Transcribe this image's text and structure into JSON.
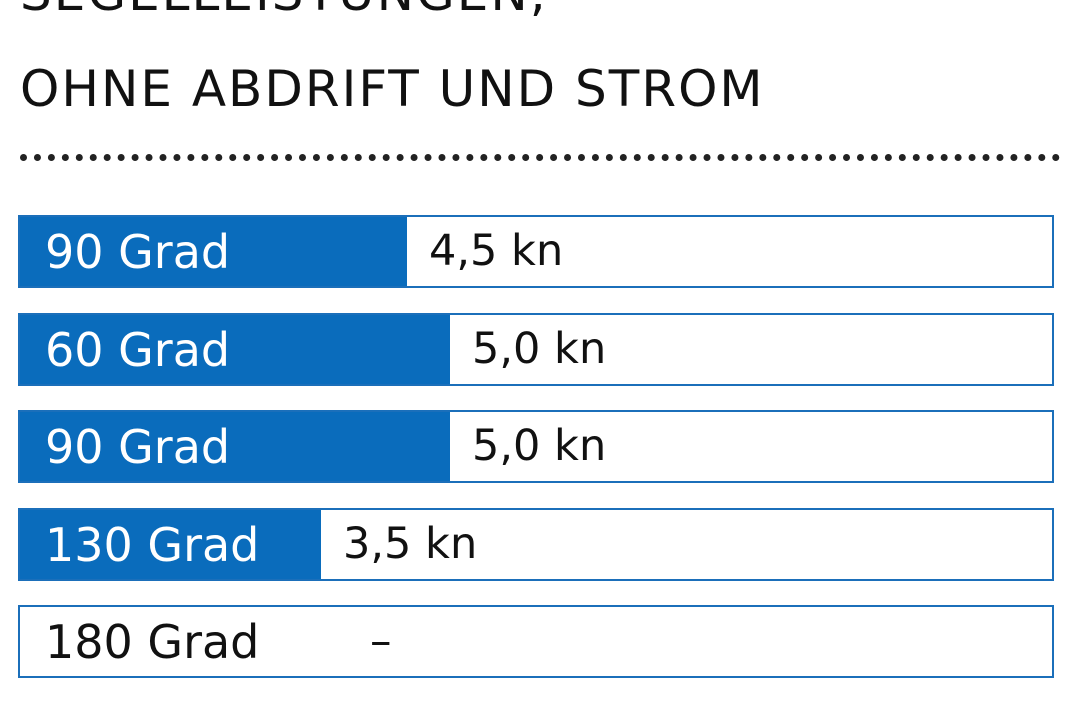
{
  "title_line_1": "SEGELLEISTUNGEN,",
  "title_line_2": "OHNE ABDRIFT UND STROM",
  "colors": {
    "bar_fill": "#0a6cbc",
    "bar_border": "#1b6fba",
    "text_dark": "#111111",
    "text_light": "#ffffff"
  },
  "chart_data": {
    "type": "bar",
    "orientation": "horizontal",
    "categories": [
      "90 Grad",
      "60 Grad",
      "90 Grad",
      "130 Grad",
      "180 Grad"
    ],
    "values": [
      4.5,
      5.0,
      5.0,
      3.5,
      null
    ],
    "value_labels": [
      "4,5 kn",
      "5,0 kn",
      "5,0 kn",
      "3,5 kn",
      "–"
    ],
    "unit": "kn",
    "xlim": [
      0,
      12
    ],
    "grid": false,
    "legend": "none"
  }
}
